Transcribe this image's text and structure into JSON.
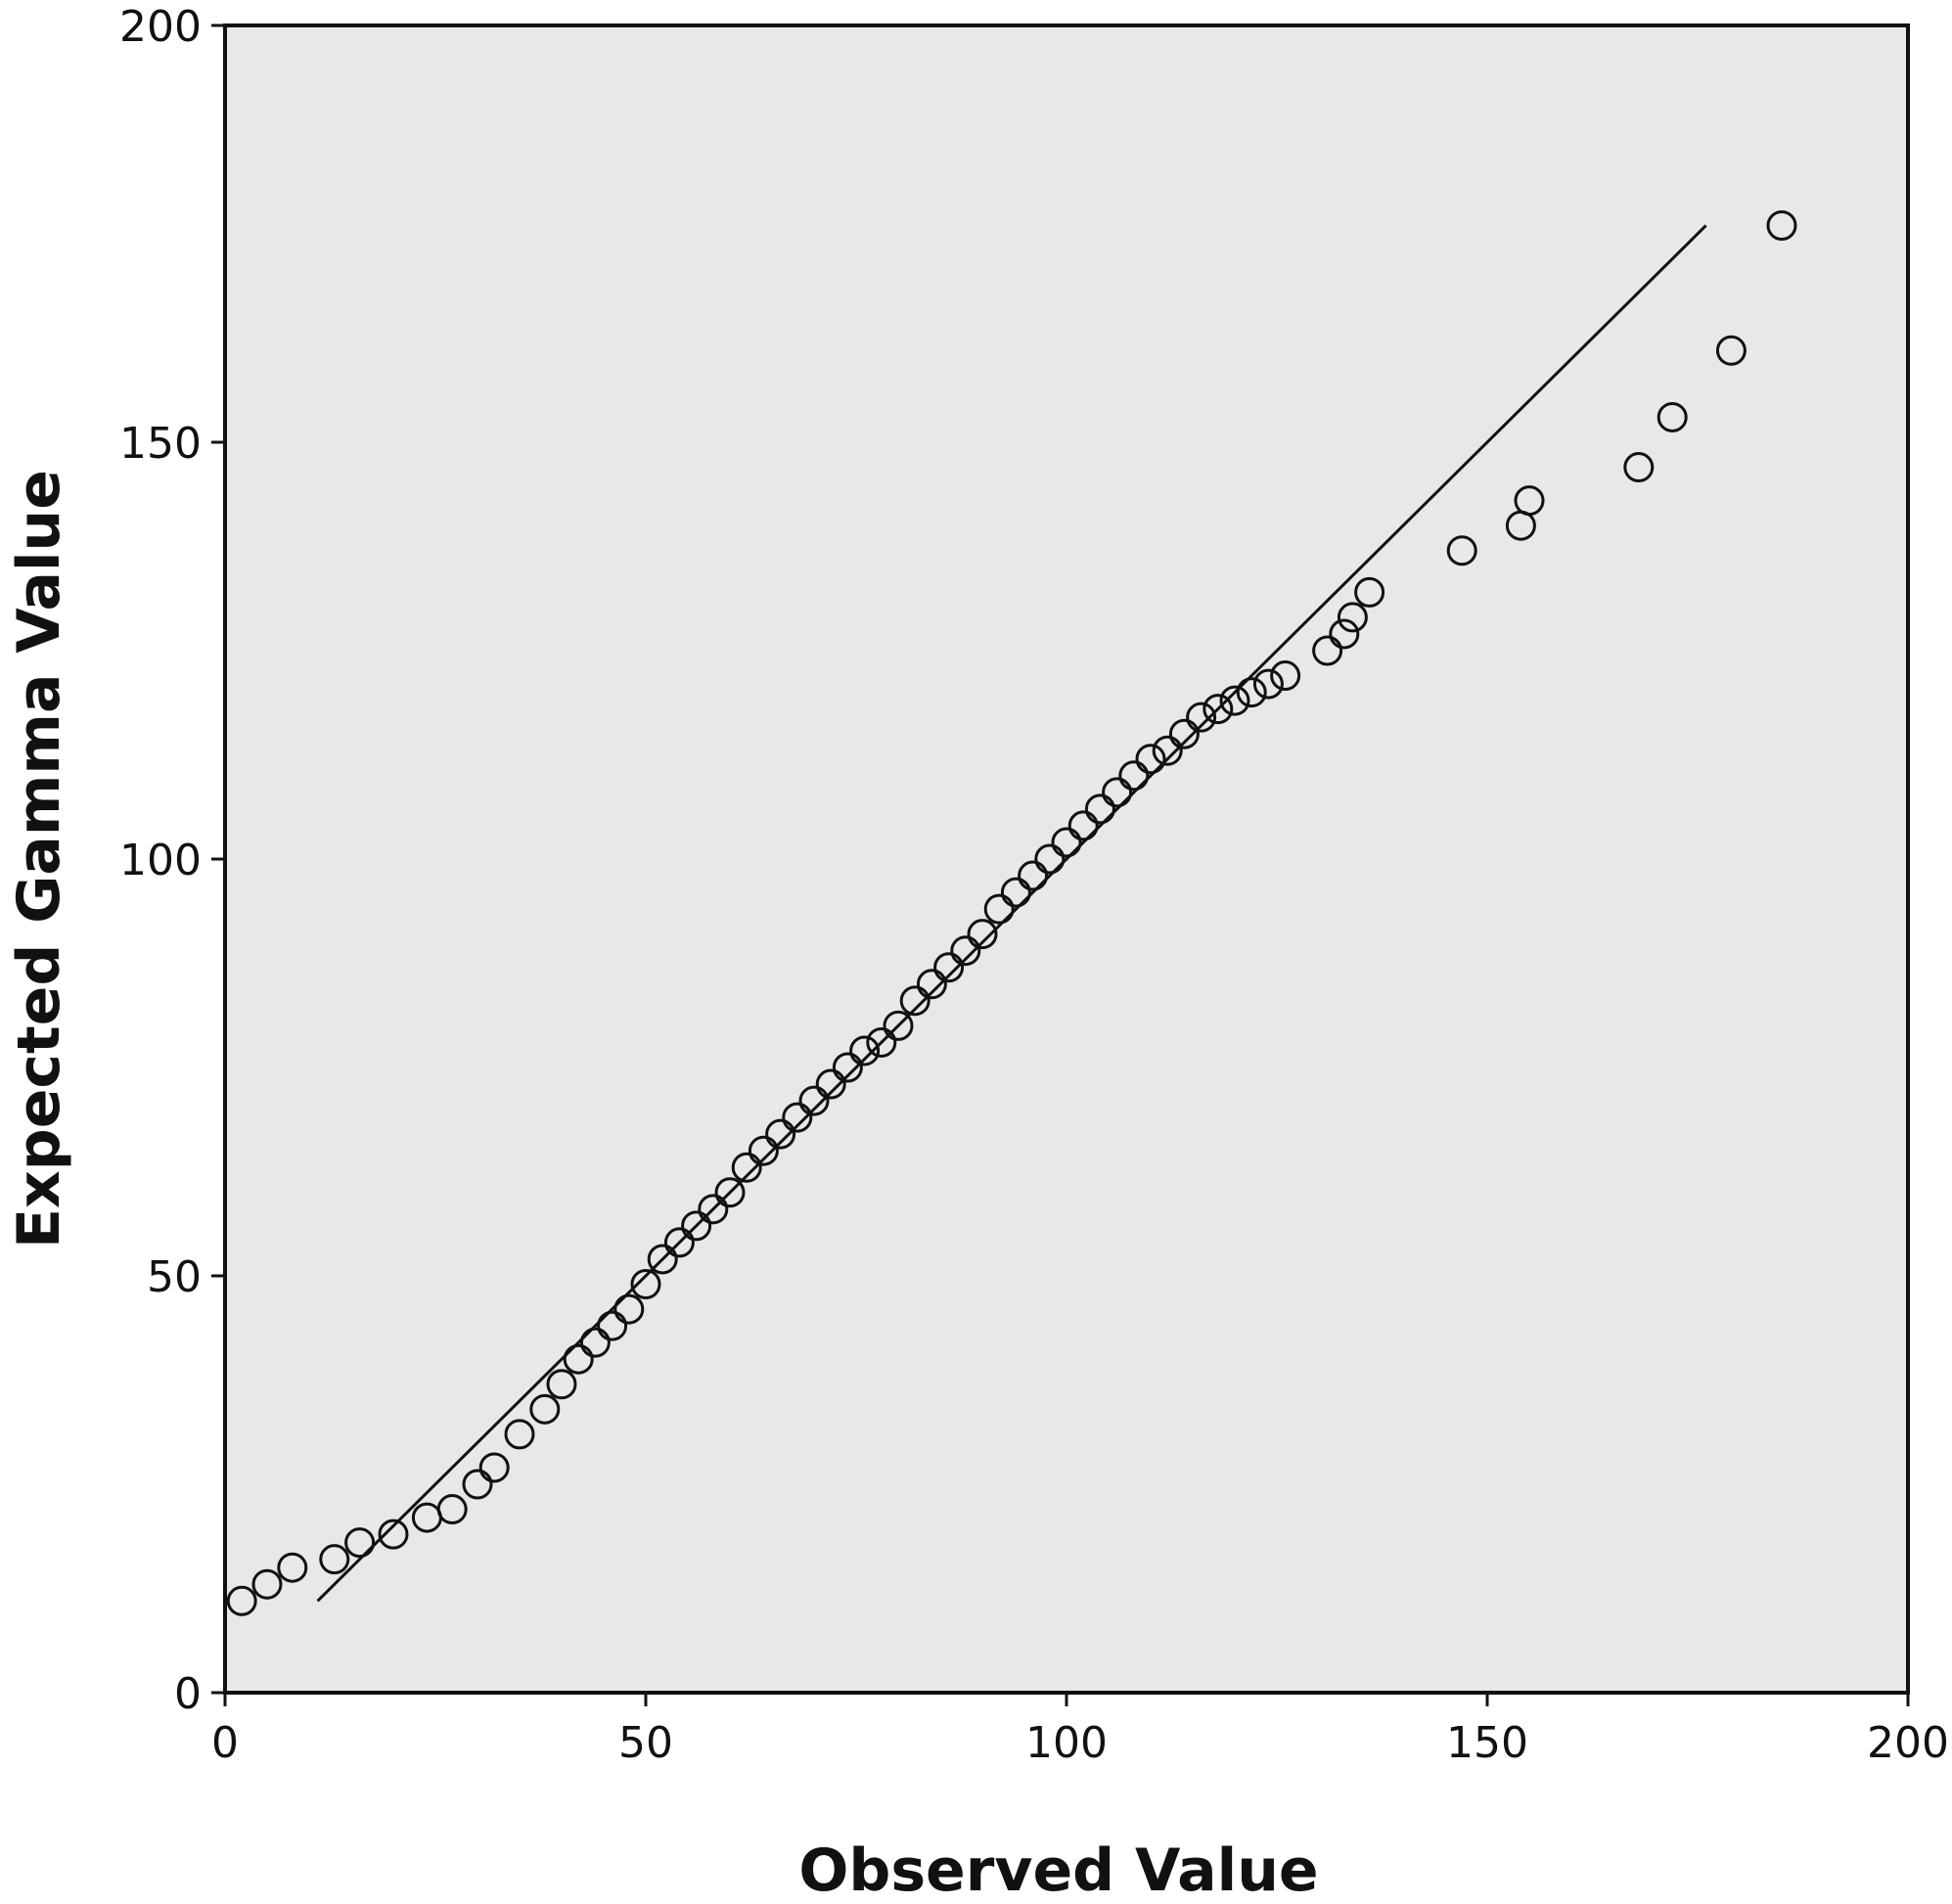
{
  "chart_data": {
    "type": "scatter",
    "title": "",
    "xlabel": "Observed Value",
    "ylabel": "Expected Gamma Value",
    "xlim": [
      0,
      200
    ],
    "ylim": [
      0,
      200
    ],
    "xticks": [
      "0",
      "50",
      "100",
      "150",
      "200"
    ],
    "yticks": [
      "0",
      "50",
      "100",
      "150",
      "200"
    ],
    "grid": false,
    "legend": "none",
    "background_color": "#e8e8e8",
    "marker_color": "#111111",
    "marker": "open-circle",
    "reference_line": {
      "x": [
        11,
        176
      ],
      "y": [
        11,
        176
      ]
    },
    "points": [
      [
        2,
        11
      ],
      [
        5,
        13
      ],
      [
        8,
        15
      ],
      [
        13,
        16
      ],
      [
        16,
        18
      ],
      [
        20,
        19
      ],
      [
        24,
        21
      ],
      [
        27,
        22
      ],
      [
        30,
        25
      ],
      [
        32,
        27
      ],
      [
        35,
        31
      ],
      [
        38,
        34
      ],
      [
        40,
        37
      ],
      [
        42,
        40
      ],
      [
        44,
        42
      ],
      [
        46,
        44
      ],
      [
        48,
        46
      ],
      [
        50,
        49
      ],
      [
        52,
        52
      ],
      [
        54,
        54
      ],
      [
        56,
        56
      ],
      [
        58,
        58
      ],
      [
        60,
        60
      ],
      [
        62,
        63
      ],
      [
        64,
        65
      ],
      [
        66,
        67
      ],
      [
        68,
        69
      ],
      [
        70,
        71
      ],
      [
        72,
        73
      ],
      [
        74,
        75
      ],
      [
        76,
        77
      ],
      [
        78,
        78
      ],
      [
        80,
        80
      ],
      [
        82,
        83
      ],
      [
        84,
        85
      ],
      [
        86,
        87
      ],
      [
        88,
        89
      ],
      [
        90,
        91
      ],
      [
        92,
        94
      ],
      [
        94,
        96
      ],
      [
        96,
        98
      ],
      [
        98,
        100
      ],
      [
        100,
        102
      ],
      [
        102,
        104
      ],
      [
        104,
        106
      ],
      [
        106,
        108
      ],
      [
        108,
        110
      ],
      [
        110,
        112
      ],
      [
        112,
        113
      ],
      [
        114,
        115
      ],
      [
        116,
        117
      ],
      [
        118,
        118
      ],
      [
        120,
        119
      ],
      [
        122,
        120
      ],
      [
        124,
        121
      ],
      [
        126,
        122
      ],
      [
        131,
        125
      ],
      [
        133,
        127
      ],
      [
        134,
        129
      ],
      [
        136,
        132
      ],
      [
        147,
        137
      ],
      [
        154,
        140
      ],
      [
        155,
        143
      ],
      [
        168,
        147
      ],
      [
        172,
        153
      ],
      [
        179,
        161
      ],
      [
        185,
        176
      ]
    ]
  }
}
